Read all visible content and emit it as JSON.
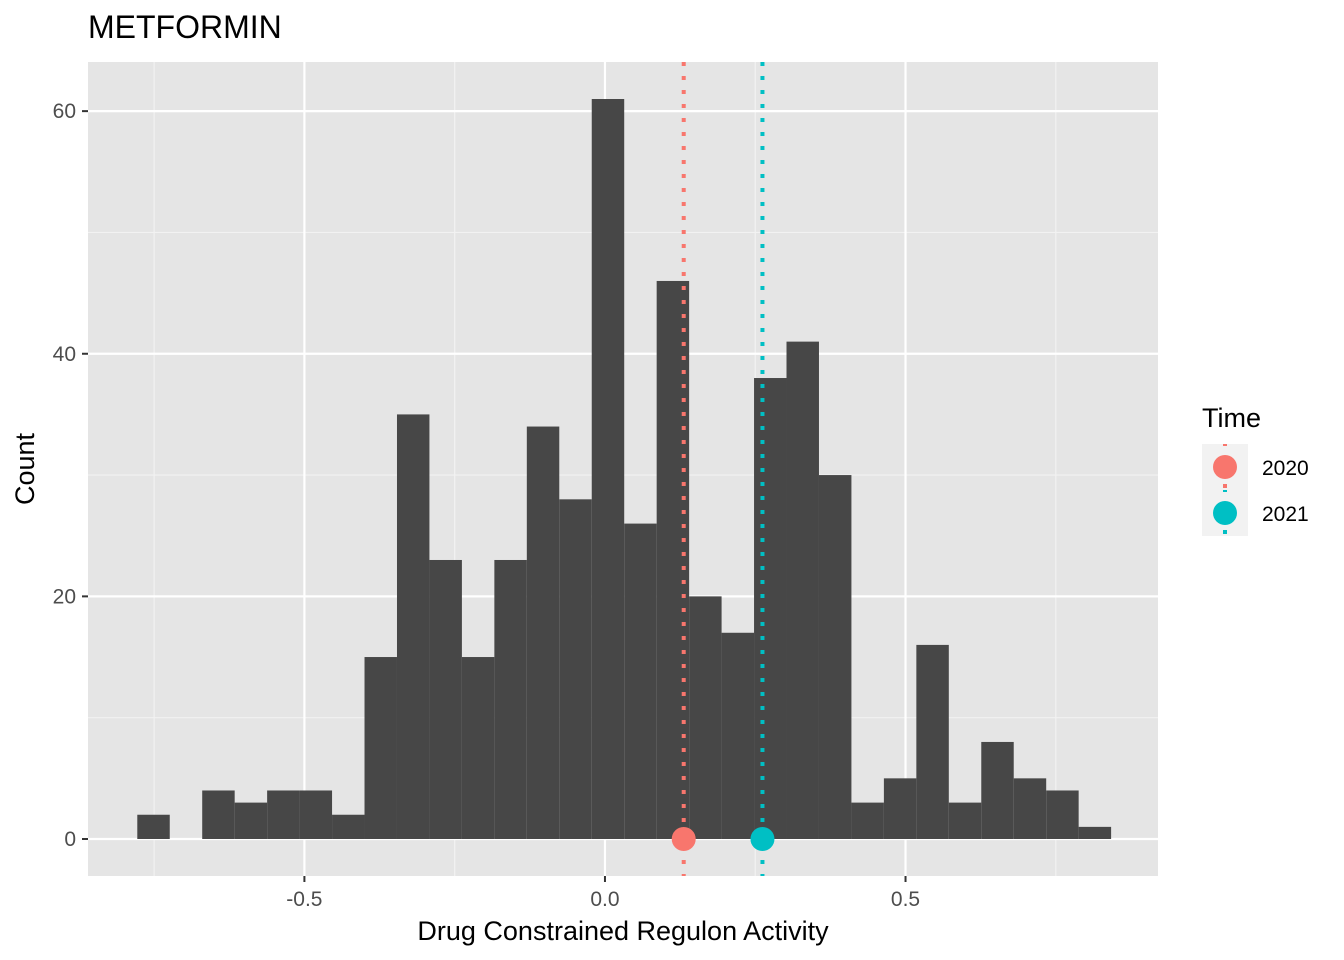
{
  "chart_data": {
    "type": "histogram",
    "title": "METFORMIN",
    "xlabel": "Drug Constrained Regulon Activity",
    "ylabel": "Count",
    "xlim": [
      -0.86,
      0.92
    ],
    "ylim": [
      -3.05,
      64.05
    ],
    "x_ticks": [
      -0.5,
      0.0,
      0.5
    ],
    "x_tick_labels": [
      "-0.5",
      "0.0",
      "0.5"
    ],
    "y_ticks": [
      0,
      20,
      40,
      60
    ],
    "y_tick_labels": [
      "0",
      "20",
      "40",
      "60"
    ],
    "grid": true,
    "bin_width": 0.054,
    "bins": [
      {
        "x0": -0.778,
        "x1": -0.724,
        "count": 2
      },
      {
        "x0": -0.724,
        "x1": -0.67,
        "count": 0
      },
      {
        "x0": -0.67,
        "x1": -0.616,
        "count": 4
      },
      {
        "x0": -0.616,
        "x1": -0.562,
        "count": 3
      },
      {
        "x0": -0.562,
        "x1": -0.508,
        "count": 4
      },
      {
        "x0": -0.508,
        "x1": -0.454,
        "count": 4
      },
      {
        "x0": -0.454,
        "x1": -0.4,
        "count": 2
      },
      {
        "x0": -0.4,
        "x1": -0.346,
        "count": 15
      },
      {
        "x0": -0.346,
        "x1": -0.292,
        "count": 35
      },
      {
        "x0": -0.292,
        "x1": -0.238,
        "count": 23
      },
      {
        "x0": -0.238,
        "x1": -0.184,
        "count": 15
      },
      {
        "x0": -0.184,
        "x1": -0.13,
        "count": 23
      },
      {
        "x0": -0.13,
        "x1": -0.076,
        "count": 34
      },
      {
        "x0": -0.076,
        "x1": -0.022,
        "count": 28
      },
      {
        "x0": -0.022,
        "x1": 0.032,
        "count": 61
      },
      {
        "x0": 0.032,
        "x1": 0.086,
        "count": 26
      },
      {
        "x0": 0.086,
        "x1": 0.14,
        "count": 46
      },
      {
        "x0": 0.14,
        "x1": 0.194,
        "count": 20
      },
      {
        "x0": 0.194,
        "x1": 0.248,
        "count": 17
      },
      {
        "x0": 0.248,
        "x1": 0.302,
        "count": 38
      },
      {
        "x0": 0.302,
        "x1": 0.356,
        "count": 41
      },
      {
        "x0": 0.356,
        "x1": 0.41,
        "count": 30
      },
      {
        "x0": 0.41,
        "x1": 0.464,
        "count": 3
      },
      {
        "x0": 0.464,
        "x1": 0.518,
        "count": 5
      },
      {
        "x0": 0.518,
        "x1": 0.572,
        "count": 16
      },
      {
        "x0": 0.572,
        "x1": 0.626,
        "count": 3
      },
      {
        "x0": 0.626,
        "x1": 0.68,
        "count": 8
      },
      {
        "x0": 0.68,
        "x1": 0.734,
        "count": 5
      },
      {
        "x0": 0.734,
        "x1": 0.788,
        "count": 4
      },
      {
        "x0": 0.788,
        "x1": 0.842,
        "count": 1
      }
    ],
    "bar_color": "#474747",
    "markers": [
      {
        "name": "2020",
        "x": 0.131,
        "y": 0,
        "color": "#F8766D"
      },
      {
        "name": "2021",
        "x": 0.262,
        "y": 0,
        "color": "#00BFC4"
      }
    ],
    "legend": {
      "title": "Time",
      "placement": "right",
      "entries": [
        {
          "label": "2020",
          "color": "#F8766D"
        },
        {
          "label": "2021",
          "color": "#00BFC4"
        }
      ]
    },
    "panel_background": "#E5E5E5"
  }
}
